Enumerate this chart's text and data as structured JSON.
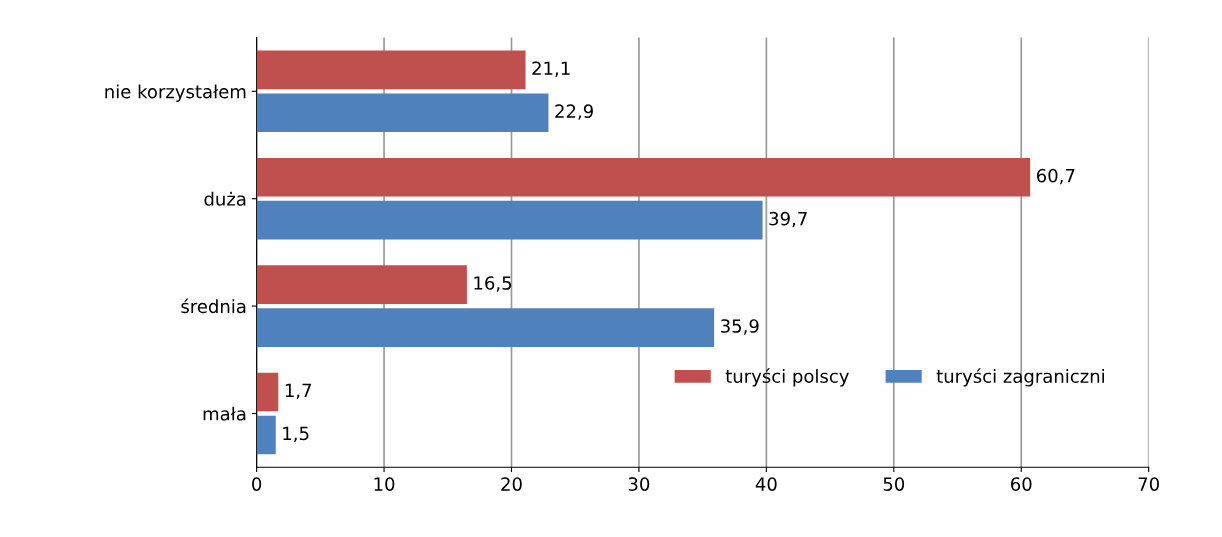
{
  "chart_data": {
    "type": "bar",
    "orientation": "horizontal",
    "categories": [
      "nie korzystałem",
      "duża",
      "średnia",
      "mała"
    ],
    "series": [
      {
        "name": "turyści polscy",
        "color": "#c0504d",
        "values": [
          21.1,
          60.7,
          16.5,
          1.7
        ],
        "value_labels": [
          "21,1",
          "60,7",
          "16,5",
          "1,7"
        ]
      },
      {
        "name": "turyści zagraniczni",
        "color": "#4f81bd",
        "values": [
          22.9,
          39.7,
          35.9,
          1.5
        ],
        "value_labels": [
          "22,9",
          "39,7",
          "35,9",
          "1,5"
        ]
      }
    ],
    "xlim": [
      0,
      70
    ],
    "xticks": [
      0,
      10,
      20,
      30,
      40,
      50,
      60,
      70
    ],
    "grid": "x",
    "legend": "bottom right"
  }
}
